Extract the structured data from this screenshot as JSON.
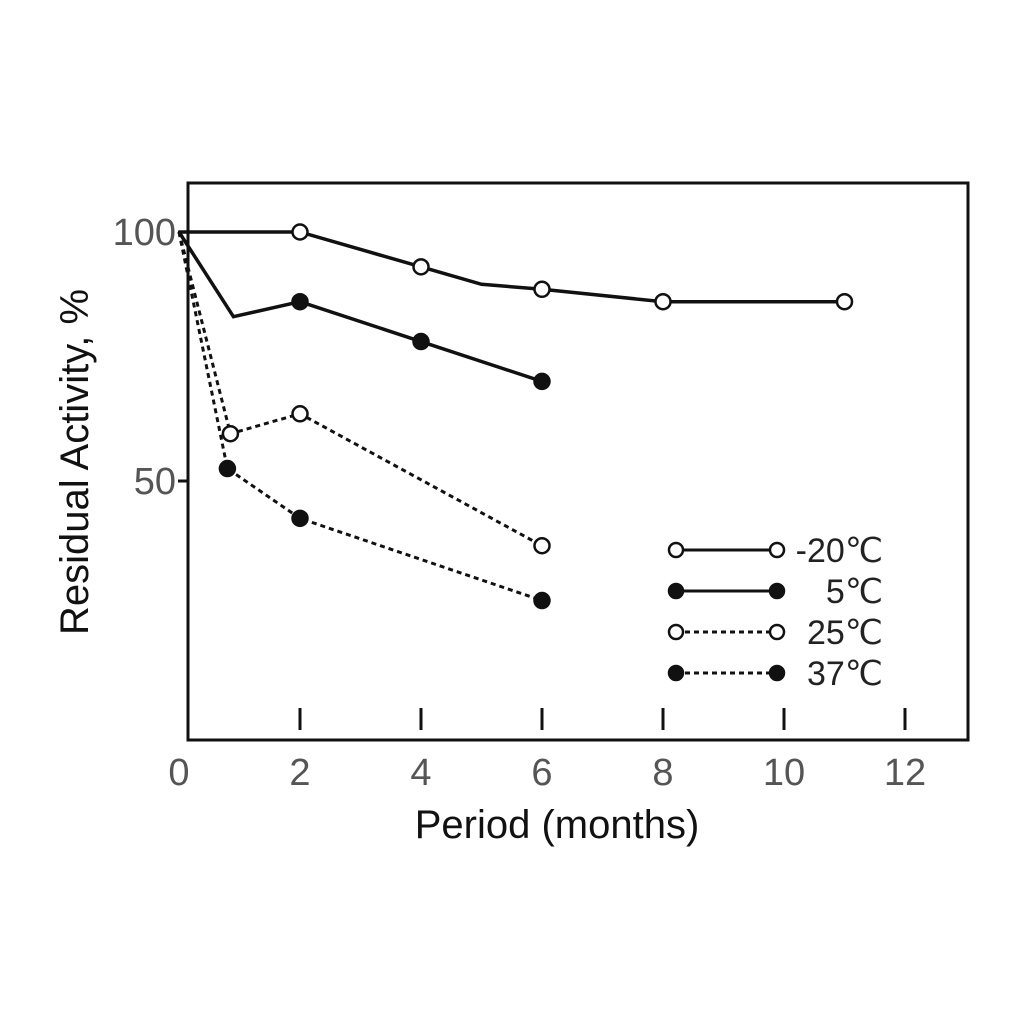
{
  "chart_data": {
    "type": "line",
    "xlabel": "Period (months)",
    "ylabel": "Residual Activity, %",
    "xlim": [
      0,
      13
    ],
    "ylim": [
      0,
      110
    ],
    "x_ticks": [
      "0",
      "2",
      "4",
      "6",
      "8",
      "10",
      "12"
    ],
    "x_tick_values": [
      0,
      2,
      4,
      6,
      8,
      10,
      12
    ],
    "y_ticks": [
      "100",
      "50"
    ],
    "y_tick_values": [
      100,
      50
    ],
    "grid": false,
    "legend_position": "lower-right",
    "series": [
      {
        "name": "-20℃",
        "marker": "open",
        "line": "solid",
        "x": [
          0,
          2,
          4,
          5,
          6,
          8,
          11
        ],
        "y": [
          100,
          100,
          93,
          89.5,
          88.5,
          86,
          86
        ],
        "markers_at": [
          2,
          4,
          6,
          8,
          11
        ]
      },
      {
        "name": "5℃",
        "marker": "filled",
        "line": "solid",
        "x": [
          0,
          0.9,
          2,
          4,
          6
        ],
        "y": [
          100,
          83,
          86,
          78,
          70
        ],
        "markers_at": [
          2,
          4,
          6
        ]
      },
      {
        "name": "25℃",
        "marker": "open",
        "line": "dotted",
        "x": [
          0,
          0.85,
          2,
          6
        ],
        "y": [
          100,
          59.5,
          63.5,
          37
        ],
        "markers_at": [
          0.85,
          2,
          6
        ]
      },
      {
        "name": "37℃",
        "marker": "filled",
        "line": "dotted",
        "x": [
          0,
          0.8,
          2,
          6
        ],
        "y": [
          100,
          52.5,
          42.5,
          26
        ],
        "markers_at": [
          0.8,
          2,
          6
        ]
      }
    ],
    "colors": {
      "line": "#111111",
      "open_fill": "#ffffff"
    }
  }
}
